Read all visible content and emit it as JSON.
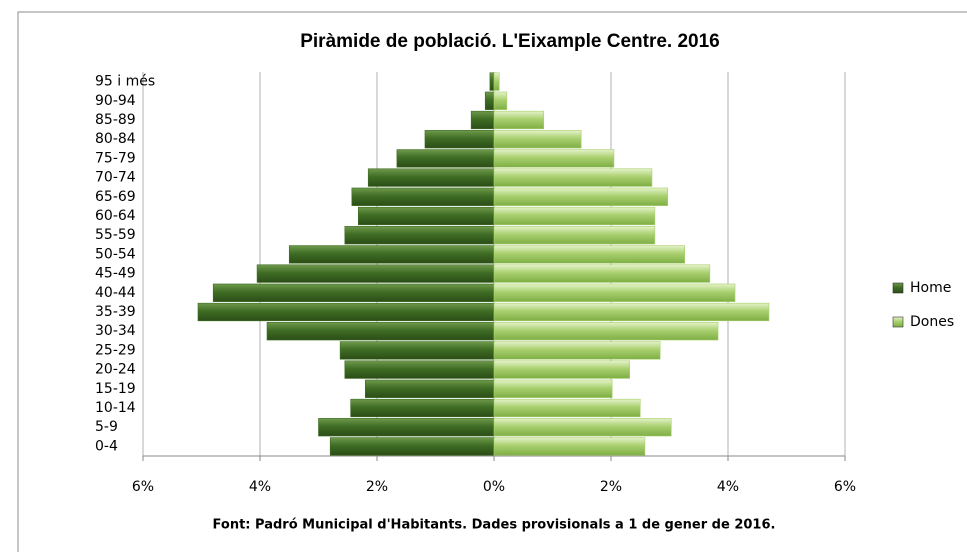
{
  "chart_data": {
    "type": "bar",
    "orientation": "horizontal",
    "stacked": "diverging",
    "title": "Piràmide de població. L'Eixample Centre. 2016",
    "footnote": "Font: Padró Municipal  d'Habitants.  Dades provisionals  a 1 de gener de 2016.",
    "categories": [
      "0-4",
      "5-9",
      "10-14",
      "15-19",
      "20-24",
      "25-29",
      "30-34",
      "35-39",
      "40-44",
      "45-49",
      "50-54",
      "55-59",
      "60-64",
      "65-69",
      "70-74",
      "75-79",
      "80-84",
      "85-89",
      "90-94",
      "95 i més"
    ],
    "series": [
      {
        "name": "Home",
        "color": "#3f6d24",
        "values": [
          -2.8,
          -3.0,
          -2.45,
          -2.2,
          -2.55,
          -2.63,
          -3.88,
          -5.06,
          -4.8,
          -4.05,
          -3.5,
          -2.55,
          -2.32,
          -2.43,
          -2.15,
          -1.66,
          -1.18,
          -0.39,
          -0.15,
          -0.07
        ]
      },
      {
        "name": "Dones",
        "color": "#a9d06f",
        "values": [
          2.58,
          3.03,
          2.5,
          2.02,
          2.32,
          2.84,
          3.83,
          4.7,
          4.12,
          3.69,
          3.26,
          2.75,
          2.75,
          2.97,
          2.7,
          2.05,
          1.49,
          0.85,
          0.22,
          0.09
        ]
      }
    ],
    "xlim": [
      -6,
      6
    ],
    "xticks": [
      {
        "value": -6,
        "label": "6%"
      },
      {
        "value": -4,
        "label": "4%"
      },
      {
        "value": -2,
        "label": "2%"
      },
      {
        "value": 0,
        "label": "0%"
      },
      {
        "value": 2,
        "label": "2%"
      },
      {
        "value": 4,
        "label": "4%"
      },
      {
        "value": 6,
        "label": "6%"
      }
    ],
    "grid": true,
    "legend": "right"
  }
}
